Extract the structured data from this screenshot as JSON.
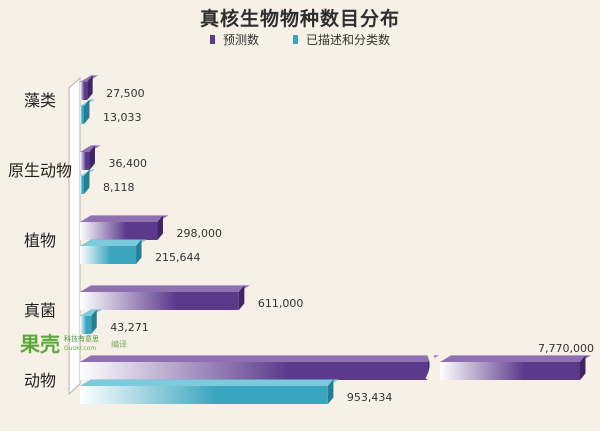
{
  "title": "真核生物物种数目分布",
  "colors": {
    "predicted": "#5b3a8c",
    "predicted_top": "#7c5aa8",
    "predicted_side": "#3f2566",
    "described": "#3aa5bf",
    "described_top": "#66c3d8",
    "described_side": "#247e94",
    "background": "#f7f0e6"
  },
  "watermark": {
    "logo": "果壳",
    "line1": "科技有意思",
    "line2": "Guokr.com",
    "extra": "编译"
  },
  "chart_data": {
    "type": "bar",
    "orientation": "horizontal",
    "title": "真核生物物种数目分布",
    "categories": [
      "藻类",
      "原生动物",
      "植物",
      "真菌",
      "动物"
    ],
    "series": [
      {
        "name": "预测数",
        "values": [
          27500,
          36400,
          298000,
          611000,
          7770000
        ],
        "labels": [
          "27,500",
          "36,400",
          "298,000",
          "611,000",
          "7,770,000"
        ]
      },
      {
        "name": "已描述和分类数",
        "values": [
          13033,
          8118,
          215644,
          43271,
          953434
        ],
        "labels": [
          "13,033",
          "8,118",
          "215,644",
          "43,271",
          "953,434"
        ]
      }
    ],
    "legend_position": "top",
    "axis_break": true,
    "grid": false
  }
}
